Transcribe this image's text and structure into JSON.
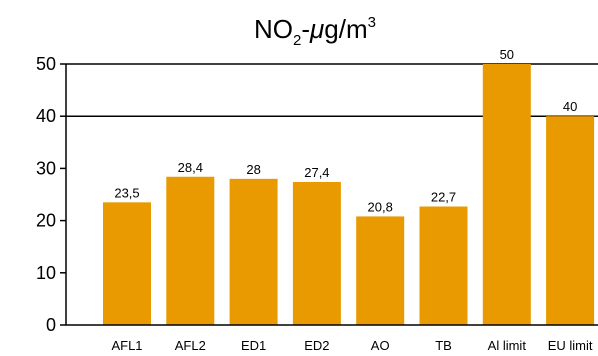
{
  "chart_data": {
    "type": "bar",
    "title": {
      "base": "NO",
      "sub": "2",
      "mid": "-",
      "unit_italic": "μ",
      "unit_rest": "g/m",
      "sup": "3"
    },
    "categories": [
      "AFL1",
      "AFL2",
      "ED1",
      "ED2",
      "AO",
      "TB",
      "Al limit",
      "EU limit"
    ],
    "values": [
      23.5,
      28.4,
      28,
      27.4,
      20.8,
      22.7,
      50,
      40
    ],
    "data_labels": [
      "23,5",
      "28,4",
      "28",
      "27,4",
      "20,8",
      "22,7",
      "50",
      "40"
    ],
    "ylim": [
      0,
      50
    ],
    "yticks": [
      0,
      10,
      20,
      30,
      40,
      50
    ],
    "gridlines": [
      40,
      50
    ],
    "grid": "horizontal",
    "legend": "none",
    "colors": {
      "bar": "#E89A00",
      "axis": "#000000"
    }
  }
}
